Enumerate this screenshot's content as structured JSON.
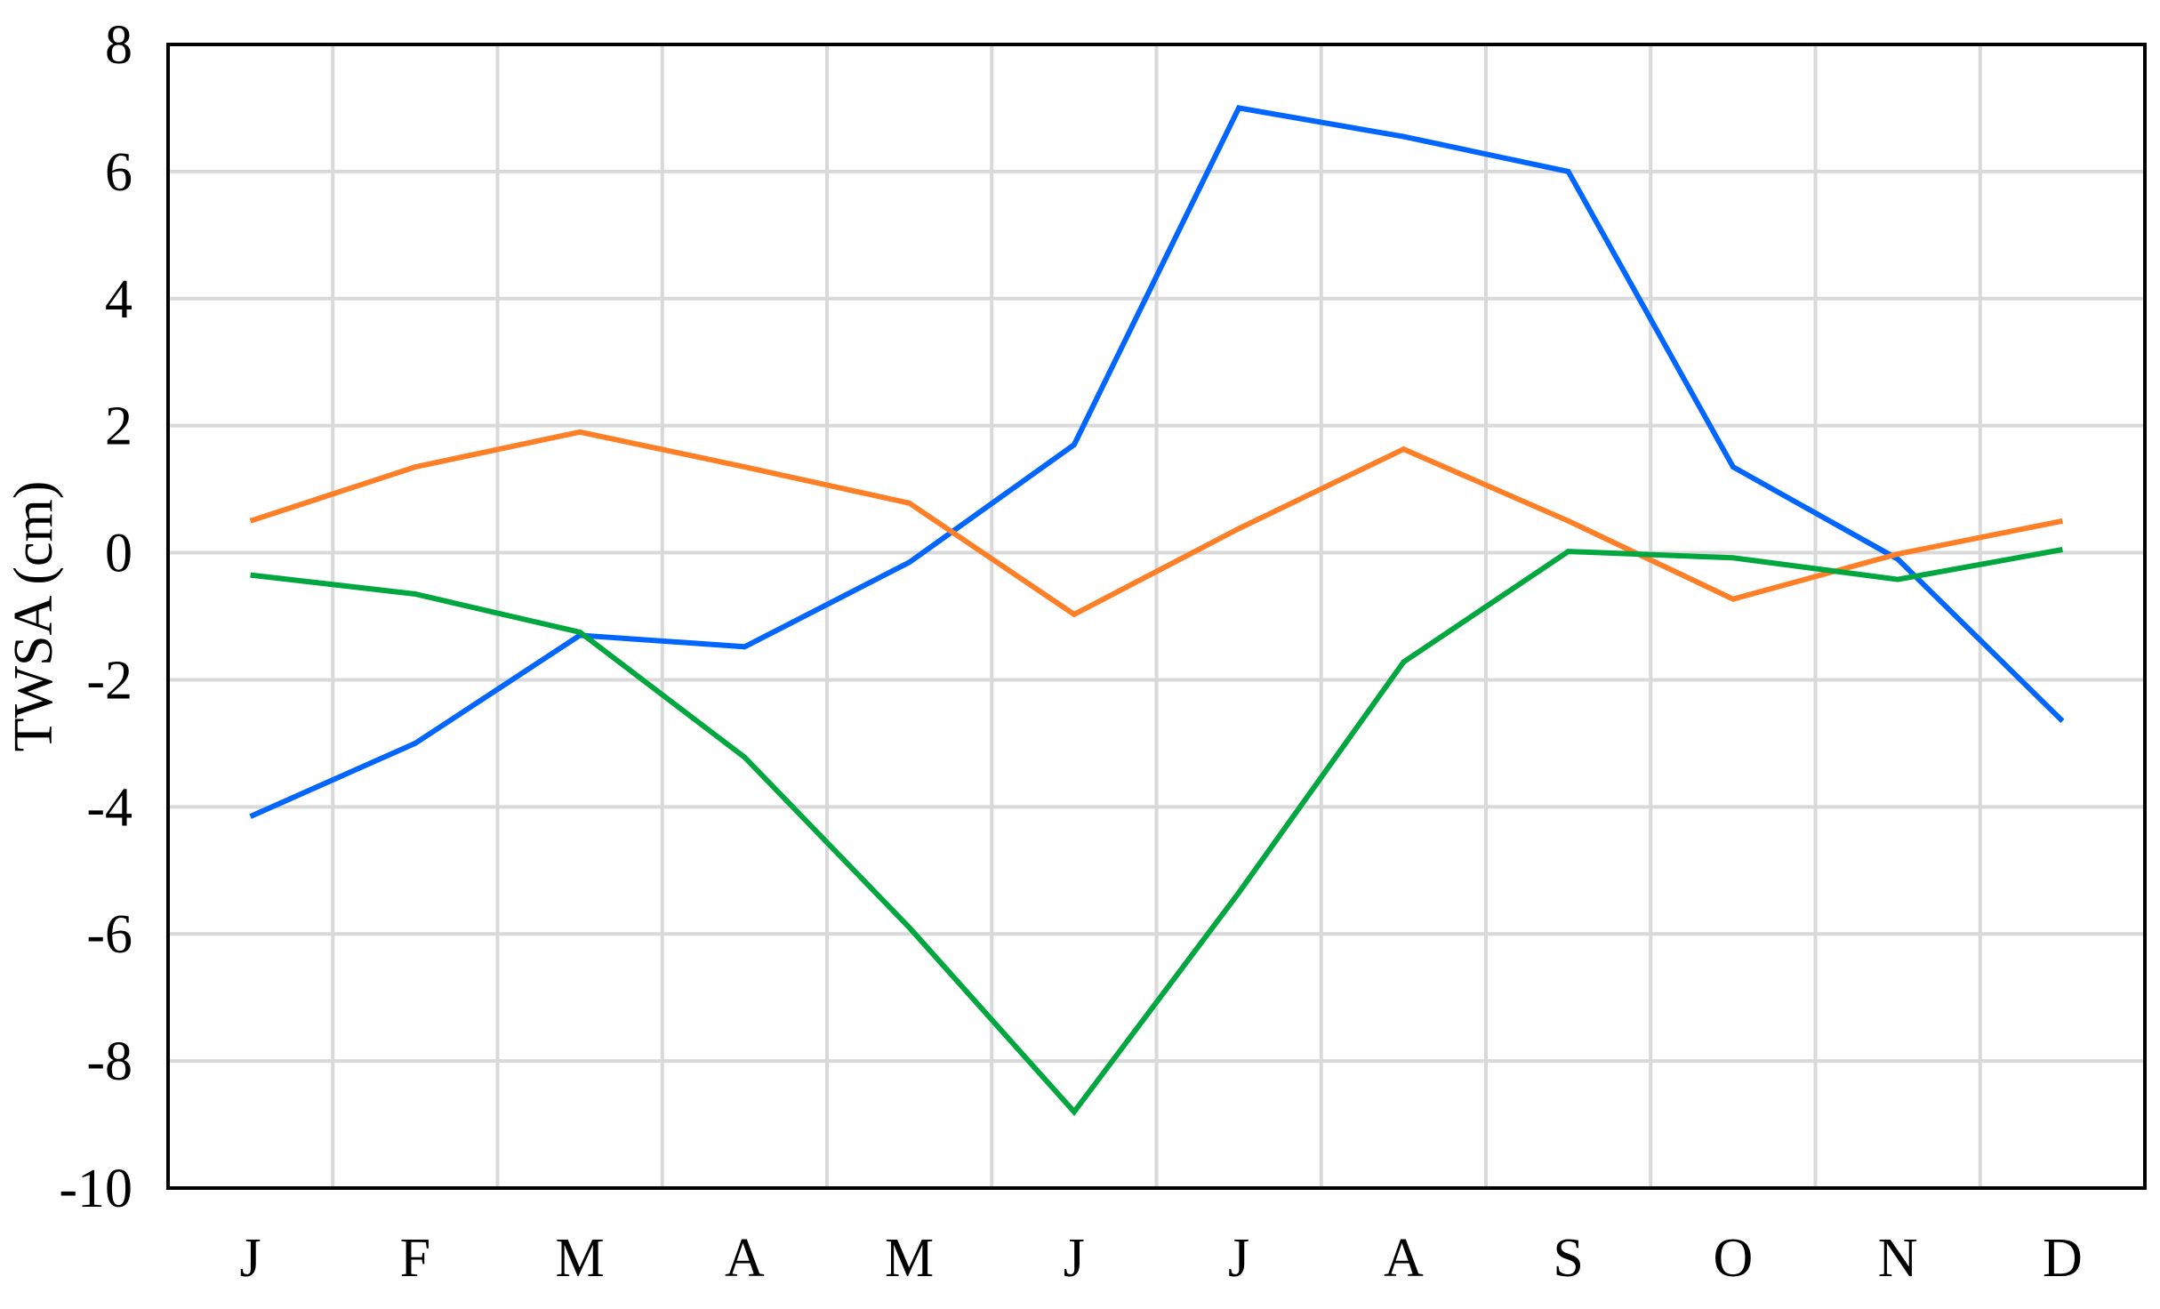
{
  "chart_data": {
    "type": "line",
    "title": "",
    "xlabel": "",
    "ylabel": "TWSA  (cm)",
    "categories": [
      "J",
      "F",
      "M",
      "A",
      "M",
      "J",
      "J",
      "A",
      "S",
      "O",
      "N",
      "D"
    ],
    "ylim": [
      -10,
      8
    ],
    "yticks": [
      8,
      6,
      4,
      2,
      0,
      -2,
      -4,
      -6,
      -8,
      -10
    ],
    "grid": true,
    "legend": "none",
    "series": [
      {
        "color": "#0066ff",
        "values": [
          -4.15,
          -3.0,
          -1.3,
          -1.48,
          -0.15,
          1.7,
          7.0,
          6.55,
          6.0,
          1.35,
          -0.1,
          -2.65
        ]
      },
      {
        "color": "#ff7f27",
        "values": [
          0.5,
          1.35,
          1.9,
          1.35,
          0.78,
          -0.97,
          0.38,
          1.63,
          0.5,
          -0.73,
          -0.02,
          0.5
        ]
      },
      {
        "color": "#00a63e",
        "values": [
          -0.35,
          -0.65,
          -1.25,
          -3.22,
          -5.9,
          -8.8,
          -5.35,
          -1.72,
          0.02,
          -0.08,
          -0.42,
          0.05
        ]
      }
    ]
  }
}
